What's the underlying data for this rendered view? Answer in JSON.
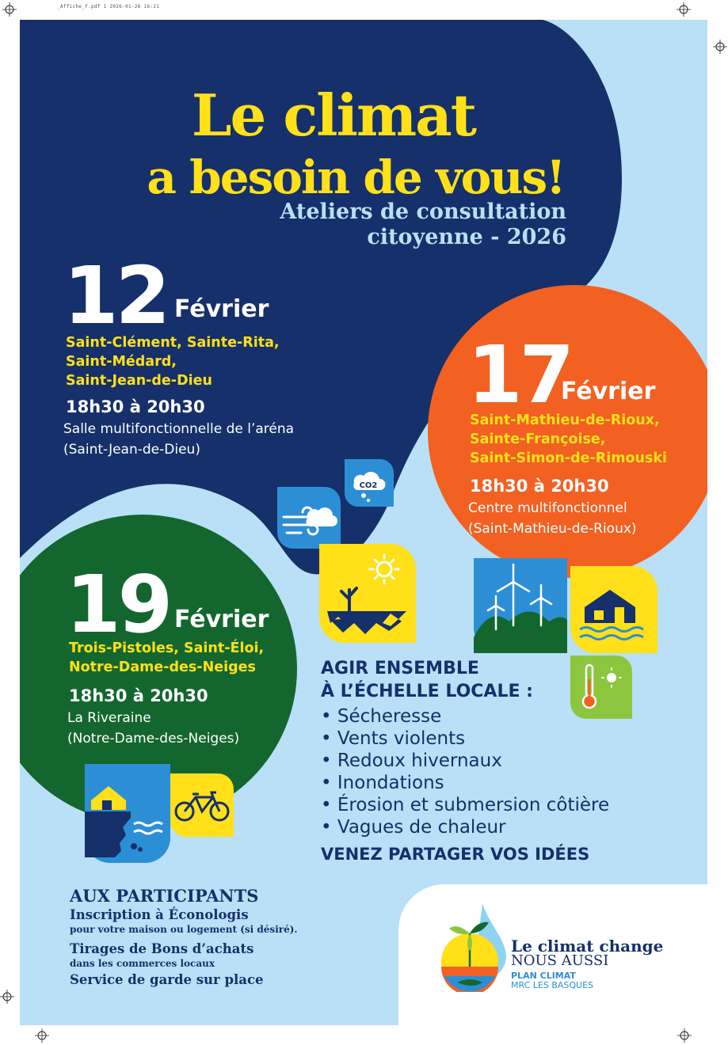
{
  "print_header": "_Affiche_F.pdf   1   2026-01-26   16:21",
  "colors": {
    "navy": "#15306a",
    "yellow": "#ffe019",
    "orange": "#f26122",
    "green": "#13672e",
    "lightblue": "#b9e0f6",
    "blue": "#2c8fd6"
  },
  "title": {
    "line1": "Le climat",
    "line2": "a besoin de vous!"
  },
  "subtitle": {
    "line1": "Ateliers de consultation",
    "line2": "citoyenne - 2026"
  },
  "event_12": {
    "day": "12",
    "month": "Février",
    "towns": [
      "Saint-Clément, Sainte-Rita,",
      "Saint-Médard,",
      "Saint-Jean-de-Dieu"
    ],
    "hours": "18h30 à 20h30",
    "place": [
      "Salle multifonctionnelle de l’aréna",
      "(Saint-Jean-de-Dieu)"
    ]
  },
  "event_17": {
    "day": "17",
    "month": "Février",
    "towns": [
      "Saint-Mathieu-de-Rioux,",
      "Sainte-Françoise,",
      "Saint-Simon-de-Rimouski"
    ],
    "hours": "18h30 à 20h30",
    "place": [
      "Centre multifonctionnel",
      "(Saint-Mathieu-de-Rioux)"
    ]
  },
  "event_19": {
    "day": "19",
    "month": "Février",
    "towns": [
      "Trois-Pistoles, Saint-Éloi,",
      "Notre-Dame-des-Neiges"
    ],
    "hours": "18h30 à 20h30",
    "place": [
      "La Riveraine",
      "(Notre-Dame-des-Neiges)"
    ]
  },
  "co2_label": "CO2",
  "agir": {
    "line1": "AGIR ENSEMBLE",
    "line2": "À L’ÉCHELLE LOCALE :"
  },
  "risks": [
    "Sécheresse",
    "Vents violents",
    "Redoux hivernaux",
    "Inondations",
    "Érosion et submersion côtière",
    "Vagues de chaleur"
  ],
  "cta": "VENEZ PARTAGER VOS IDÉES",
  "participants": {
    "title": "AUX PARTICIPANTS",
    "item1": "Inscription à Éconologis",
    "item1_note": "pour votre maison ou logement (si désiré).",
    "item2": "Tirages de Bons d’achats",
    "item2_note": "dans les commerces locaux",
    "item3": "Service de garde sur place"
  },
  "logo": {
    "line1": "Le climat change",
    "line2": "NOUS AUSSI",
    "line3": "PLAN CLIMAT",
    "line4": "MRC LES BASQUES"
  }
}
